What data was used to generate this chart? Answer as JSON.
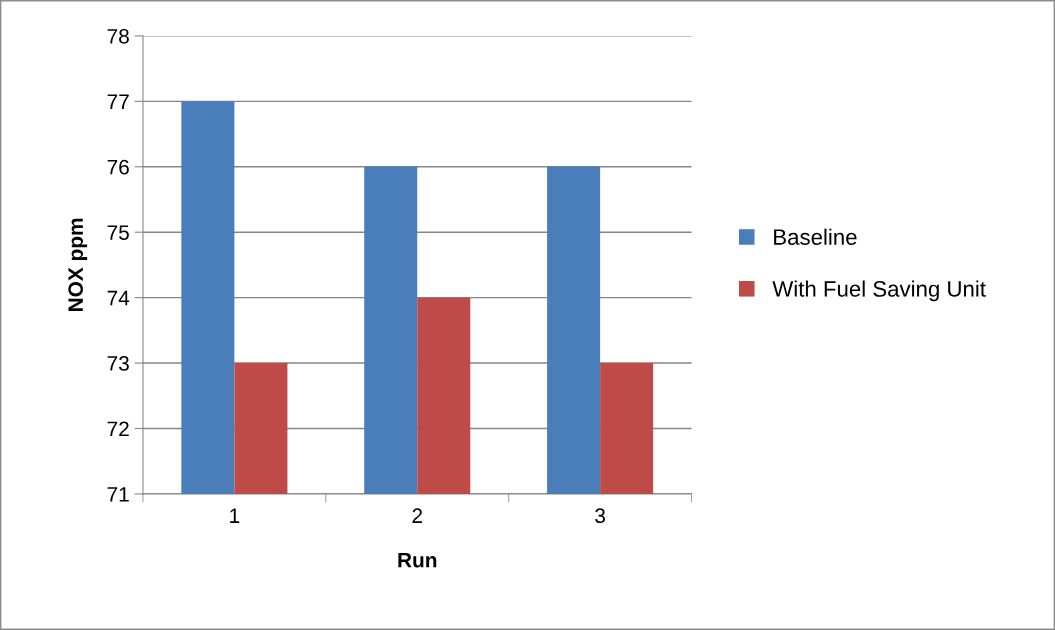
{
  "chart_data": {
    "type": "bar",
    "xlabel": "Run",
    "ylabel": "NOX ppm",
    "categories": [
      "1",
      "2",
      "3"
    ],
    "series": [
      {
        "name": "Baseline",
        "color": "#4a7ebb",
        "values": [
          77,
          76,
          76
        ]
      },
      {
        "name": "With Fuel Saving Unit",
        "color": "#be4b48",
        "values": [
          73,
          74,
          73
        ]
      }
    ],
    "ylim": [
      71,
      78
    ],
    "yticks": [
      71,
      72,
      73,
      74,
      75,
      76,
      77,
      78
    ],
    "grid": "y",
    "legend": "right"
  }
}
